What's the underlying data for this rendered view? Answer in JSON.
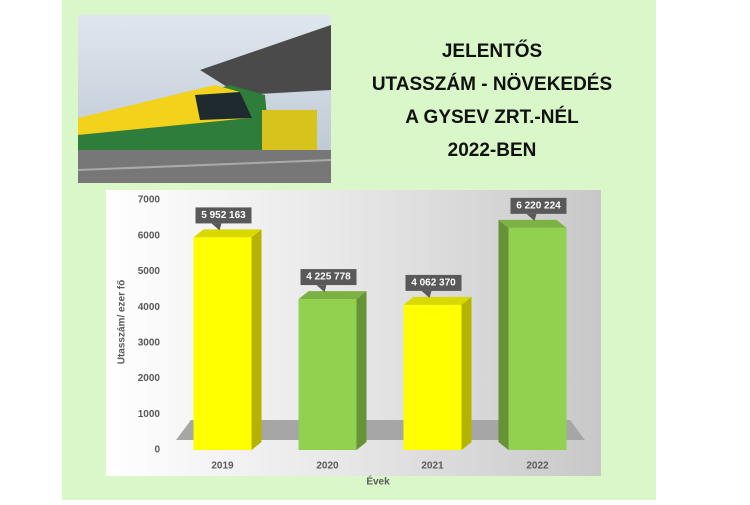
{
  "chart_data": {
    "type": "bar",
    "title": [
      "JELENTŐS",
      "UTASSZÁM - NÖVEKEDÉS",
      "A GYSEV ZRT.-NÉL",
      "2022-BEN"
    ],
    "categories": [
      "2019",
      "2020",
      "2021",
      "2022"
    ],
    "values": [
      5952.163,
      4225.778,
      4062.37,
      6220.224
    ],
    "value_labels": [
      "5 952 163",
      "4 225 778",
      "4 062 370",
      "6 220 224"
    ],
    "colors": [
      "#ffff00",
      "#92d050",
      "#ffff00",
      "#92d050"
    ],
    "x_label": "Évek",
    "y_label": "Utasszám/ ezer fő",
    "ylim": [
      0,
      7000
    ],
    "yticks": [
      0,
      1000,
      2000,
      3000,
      4000,
      5000,
      6000,
      7000
    ]
  }
}
